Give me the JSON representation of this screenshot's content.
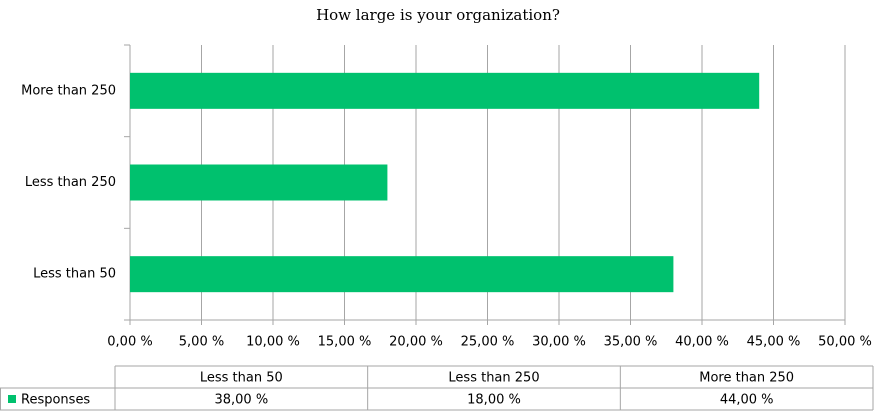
{
  "chart_data": {
    "type": "bar",
    "orientation": "horizontal",
    "title": "How large is your organization?",
    "categories": [
      "Less than 50",
      "Less than 250",
      "More than 250"
    ],
    "series": [
      {
        "name": "Responses",
        "color": "#00c16e",
        "values": [
          38,
          18,
          44
        ],
        "value_labels": [
          "38,00 %",
          "18,00 %",
          "44,00 %"
        ]
      }
    ],
    "xlim": [
      0,
      50
    ],
    "xticks": [
      {
        "value": 0,
        "label": "0,00 %"
      },
      {
        "value": 5,
        "label": "5,00 %"
      },
      {
        "value": 10,
        "label": "10,00 %"
      },
      {
        "value": 15,
        "label": "15,00 %"
      },
      {
        "value": 20,
        "label": "20,00 %"
      },
      {
        "value": 25,
        "label": "25,00 %"
      },
      {
        "value": 30,
        "label": "30,00 %"
      },
      {
        "value": 35,
        "label": "35,00 %"
      },
      {
        "value": 40,
        "label": "40,00 %"
      },
      {
        "value": 45,
        "label": "45,00 %"
      },
      {
        "value": 50,
        "label": "50,00 %"
      }
    ],
    "grid": true,
    "data_table": true
  }
}
